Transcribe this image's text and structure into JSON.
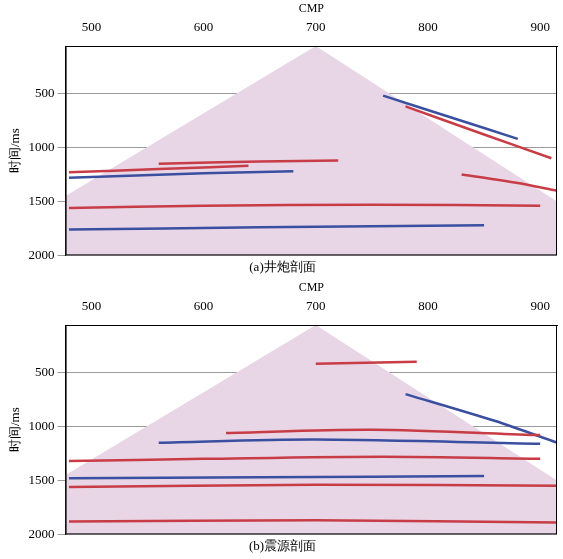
{
  "chart_data": [
    {
      "type": "line",
      "title": "(a)井炮剖面",
      "x_label": "CMP",
      "y_label": "时间/ms",
      "xlim": [
        477,
        915
      ],
      "xticks": [
        500,
        600,
        700,
        800,
        900
      ],
      "ylim": [
        60,
        2000
      ],
      "yticks": [
        500,
        1000,
        1500,
        2000
      ],
      "grid": "y",
      "tick_labels": true,
      "series": [
        {
          "type": "area",
          "color": "#e8d6e6",
          "x": [
            477,
            700,
            915,
            915,
            477
          ],
          "values": [
            1450,
            60,
            1500,
            2000,
            2000
          ]
        },
        {
          "type": "line",
          "color": "#c83c46",
          "x": [
            480,
            560,
            640
          ],
          "values": [
            1230,
            1200,
            1170
          ]
        },
        {
          "type": "line",
          "color": "#3a4fa0",
          "x": [
            480,
            600,
            680
          ],
          "values": [
            1280,
            1240,
            1220
          ]
        },
        {
          "type": "line",
          "color": "#c83c46",
          "x": [
            560,
            650,
            720
          ],
          "values": [
            1150,
            1130,
            1120
          ]
        },
        {
          "type": "line",
          "color": "#3a4fa0",
          "x": [
            760,
            820,
            880
          ],
          "values": [
            520,
            720,
            920
          ]
        },
        {
          "type": "line",
          "color": "#c83c46",
          "x": [
            780,
            850,
            910
          ],
          "values": [
            620,
            880,
            1100
          ]
        },
        {
          "type": "line",
          "color": "#c83c46",
          "x": [
            480,
            600,
            750,
            900
          ],
          "values": [
            1560,
            1540,
            1530,
            1540
          ]
        },
        {
          "type": "line",
          "color": "#3a4fa0",
          "x": [
            480,
            650,
            850
          ],
          "values": [
            1760,
            1740,
            1720
          ]
        },
        {
          "type": "line",
          "color": "#c83c46",
          "x": [
            830,
            880,
            915
          ],
          "values": [
            1250,
            1330,
            1400
          ]
        }
      ]
    },
    {
      "type": "line",
      "title": "(b)震源剖面",
      "x_label": "CMP",
      "y_label": "时间/ms",
      "xlim": [
        477,
        915
      ],
      "xticks": [
        500,
        600,
        700,
        800,
        900
      ],
      "ylim": [
        60,
        2000
      ],
      "yticks": [
        500,
        1000,
        1500,
        2000
      ],
      "grid": "y",
      "tick_labels": true,
      "series": [
        {
          "type": "area",
          "color": "#e8d6e6",
          "x": [
            477,
            700,
            915,
            915,
            477
          ],
          "values": [
            1450,
            60,
            1500,
            2000,
            2000
          ]
        },
        {
          "type": "line",
          "color": "#c83c46",
          "x": [
            620,
            750,
            900
          ],
          "values": [
            1060,
            1030,
            1080
          ]
        },
        {
          "type": "line",
          "color": "#3a4fa0",
          "x": [
            560,
            700,
            900
          ],
          "values": [
            1150,
            1120,
            1160
          ]
        },
        {
          "type": "line",
          "color": "#c83c46",
          "x": [
            480,
            600,
            760,
            900
          ],
          "values": [
            1320,
            1300,
            1280,
            1300
          ]
        },
        {
          "type": "line",
          "color": "#3a4fa0",
          "x": [
            480,
            650,
            850
          ],
          "values": [
            1480,
            1470,
            1460
          ]
        },
        {
          "type": "line",
          "color": "#c83c46",
          "x": [
            480,
            700,
            915
          ],
          "values": [
            1560,
            1540,
            1550
          ]
        },
        {
          "type": "line",
          "color": "#c83c46",
          "x": [
            700,
            790
          ],
          "values": [
            420,
            400
          ]
        },
        {
          "type": "line",
          "color": "#3a4fa0",
          "x": [
            780,
            860,
            915
          ],
          "values": [
            700,
            950,
            1150
          ]
        },
        {
          "type": "line",
          "color": "#c83c46",
          "x": [
            480,
            700,
            915
          ],
          "values": [
            1880,
            1870,
            1890
          ]
        }
      ]
    }
  ]
}
